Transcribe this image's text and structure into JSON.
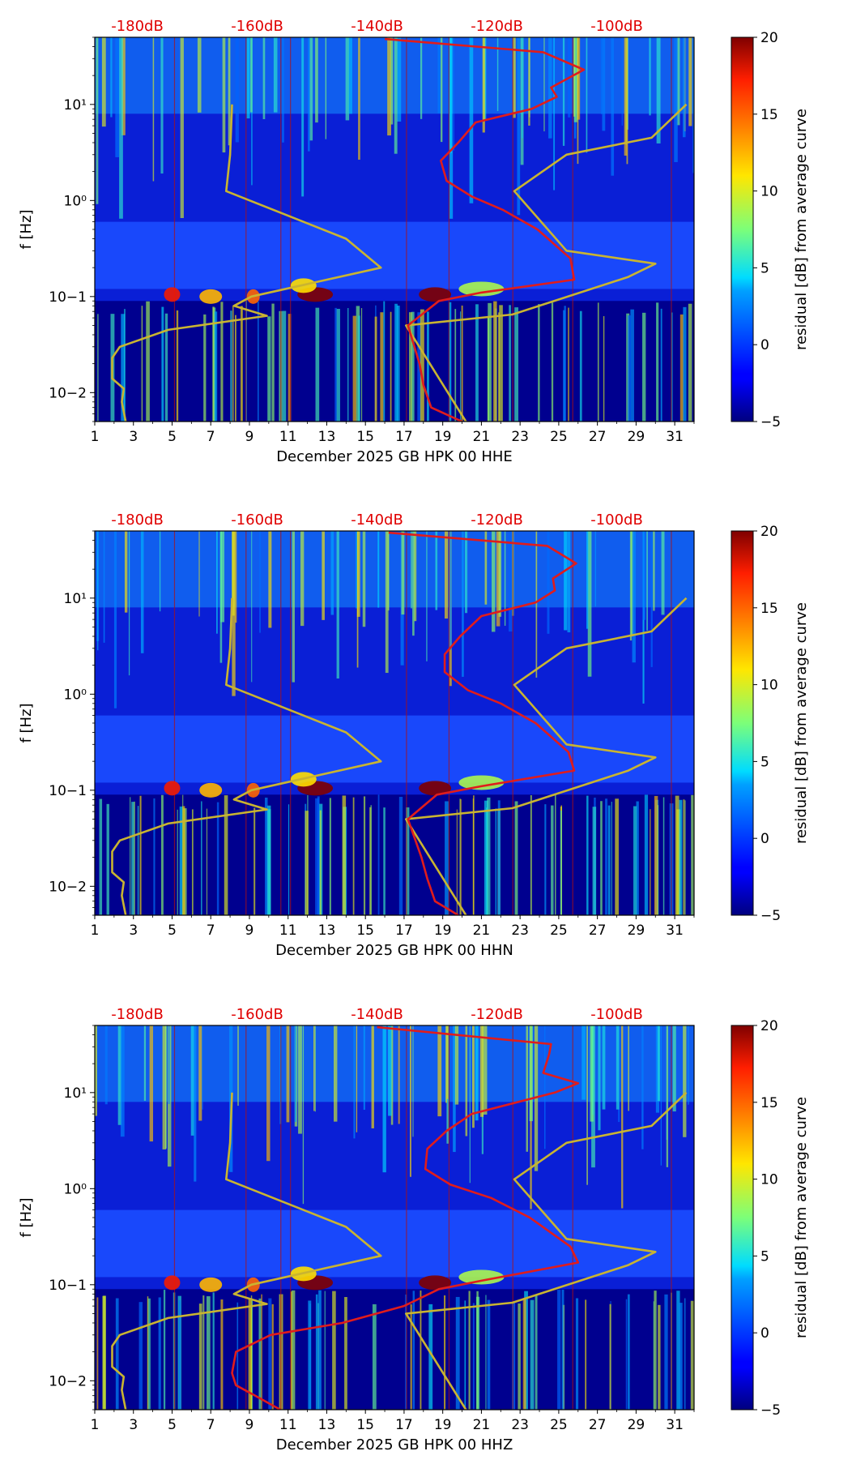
{
  "chart_data": [
    {
      "type": "heatmap",
      "xlabel": "December 2025 GB HPK 00 HHE",
      "ylabel": "f [Hz]",
      "x_ticks": [
        "1",
        "3",
        "5",
        "7",
        "9",
        "11",
        "13",
        "15",
        "17",
        "19",
        "21",
        "23",
        "25",
        "27",
        "29",
        "31"
      ],
      "y_ticks": [
        "10−2",
        "10−1",
        "10⁰",
        "10¹"
      ],
      "ylim_hz": [
        0.005,
        50
      ],
      "xlim_days": [
        1,
        32
      ],
      "db_ticks": [
        "-180dB",
        "-160dB",
        "-140dB",
        "-120dB",
        "-100dB"
      ],
      "colorbar": {
        "label": "residual [dB] from average curve",
        "ticks": [
          "−5",
          "0",
          "5",
          "10",
          "15",
          "20"
        ],
        "range": [
          -5,
          20
        ]
      },
      "series": [
        {
          "name": "noise model (yellow)",
          "color": "#c9b431",
          "points_day_hz": [
            [
              2.6,
              0.005
            ],
            [
              2.4,
              0.008
            ],
            [
              2.5,
              0.011
            ],
            [
              1.9,
              0.014
            ],
            [
              1.9,
              0.023
            ],
            [
              2.3,
              0.03
            ],
            [
              4.8,
              0.045
            ],
            [
              9.9,
              0.063
            ],
            [
              8.2,
              0.08
            ],
            [
              9.1,
              0.1
            ],
            [
              15.8,
              0.2
            ],
            [
              14.0,
              0.4
            ],
            [
              7.8,
              1.25
            ],
            [
              8.0,
              3
            ],
            [
              8.1,
              10
            ]
          ]
        },
        {
          "name": "noise model right (yellow)",
          "color": "#c9b431",
          "points_day_hz": [
            [
              20.2,
              0.005
            ],
            [
              17.1,
              0.05
            ],
            [
              22.6,
              0.065
            ],
            [
              28.6,
              0.16
            ],
            [
              30.0,
              0.22
            ],
            [
              25.4,
              0.3
            ],
            [
              22.7,
              1.25
            ],
            [
              25.4,
              3
            ],
            [
              29.8,
              4.5
            ],
            [
              31.6,
              10
            ]
          ]
        },
        {
          "name": "median PSD (red)",
          "color": "#e01c1c",
          "points_day_hz": [
            [
              20.0,
              0.005
            ],
            [
              18.4,
              0.007
            ],
            [
              18.0,
              0.012
            ],
            [
              17.8,
              0.02
            ],
            [
              17.2,
              0.05
            ],
            [
              18.8,
              0.09
            ],
            [
              21.0,
              0.11
            ],
            [
              25.8,
              0.15
            ],
            [
              25.6,
              0.25
            ],
            [
              23.9,
              0.5
            ],
            [
              22.1,
              0.8
            ],
            [
              20.5,
              1.1
            ],
            [
              19.2,
              1.6
            ],
            [
              18.9,
              2.6
            ],
            [
              19.8,
              4
            ],
            [
              20.7,
              6.5
            ],
            [
              23.6,
              9
            ],
            [
              24.9,
              12
            ],
            [
              24.6,
              15
            ],
            [
              26.3,
              23
            ],
            [
              24.2,
              35
            ],
            [
              16.0,
              48
            ]
          ]
        }
      ]
    },
    {
      "type": "heatmap",
      "xlabel": "December 2025 GB HPK 00 HHN",
      "ylabel": "f [Hz]",
      "x_ticks": [
        "1",
        "3",
        "5",
        "7",
        "9",
        "11",
        "13",
        "15",
        "17",
        "19",
        "21",
        "23",
        "25",
        "27",
        "29",
        "31"
      ],
      "y_ticks": [
        "10−2",
        "10−1",
        "10⁰",
        "10¹"
      ],
      "ylim_hz": [
        0.005,
        50
      ],
      "xlim_days": [
        1,
        32
      ],
      "db_ticks": [
        "-180dB",
        "-160dB",
        "-140dB",
        "-120dB",
        "-100dB"
      ],
      "colorbar": {
        "label": "residual [dB] from average curve",
        "ticks": [
          "−5",
          "0",
          "5",
          "10",
          "15",
          "20"
        ],
        "range": [
          -5,
          20
        ]
      },
      "series": [
        {
          "name": "noise model (yellow)",
          "color": "#c9b431",
          "points_day_hz": [
            [
              2.6,
              0.005
            ],
            [
              2.4,
              0.008
            ],
            [
              2.5,
              0.011
            ],
            [
              1.9,
              0.014
            ],
            [
              1.9,
              0.023
            ],
            [
              2.3,
              0.03
            ],
            [
              4.8,
              0.045
            ],
            [
              9.9,
              0.063
            ],
            [
              8.2,
              0.08
            ],
            [
              9.1,
              0.1
            ],
            [
              15.8,
              0.2
            ],
            [
              14.0,
              0.4
            ],
            [
              7.8,
              1.25
            ],
            [
              8.0,
              3
            ],
            [
              8.1,
              10
            ]
          ]
        },
        {
          "name": "noise model right (yellow)",
          "color": "#c9b431",
          "points_day_hz": [
            [
              20.2,
              0.005
            ],
            [
              17.1,
              0.05
            ],
            [
              22.6,
              0.065
            ],
            [
              28.6,
              0.16
            ],
            [
              30.0,
              0.22
            ],
            [
              25.4,
              0.3
            ],
            [
              22.7,
              1.25
            ],
            [
              25.4,
              3
            ],
            [
              29.8,
              4.5
            ],
            [
              31.6,
              10
            ]
          ]
        },
        {
          "name": "median PSD (red)",
          "color": "#e01c1c",
          "points_day_hz": [
            [
              19.8,
              0.005
            ],
            [
              18.6,
              0.007
            ],
            [
              18.2,
              0.012
            ],
            [
              17.9,
              0.02
            ],
            [
              17.2,
              0.05
            ],
            [
              18.7,
              0.09
            ],
            [
              21.0,
              0.11
            ],
            [
              25.8,
              0.16
            ],
            [
              25.5,
              0.25
            ],
            [
              23.8,
              0.5
            ],
            [
              22.0,
              0.8
            ],
            [
              20.3,
              1.1
            ],
            [
              19.1,
              1.7
            ],
            [
              19.1,
              2.6
            ],
            [
              19.9,
              4
            ],
            [
              21.0,
              6.5
            ],
            [
              23.8,
              9
            ],
            [
              24.8,
              12
            ],
            [
              24.7,
              16
            ],
            [
              25.9,
              23
            ],
            [
              24.4,
              35
            ],
            [
              16.2,
              48
            ]
          ]
        }
      ]
    },
    {
      "type": "heatmap",
      "xlabel": "December 2025 GB HPK 00 HHZ",
      "ylabel": "f [Hz]",
      "x_ticks": [
        "1",
        "3",
        "5",
        "7",
        "9",
        "11",
        "13",
        "15",
        "17",
        "19",
        "21",
        "23",
        "25",
        "27",
        "29",
        "31"
      ],
      "y_ticks": [
        "10−2",
        "10−1",
        "10⁰",
        "10¹"
      ],
      "ylim_hz": [
        0.005,
        50
      ],
      "xlim_days": [
        1,
        32
      ],
      "db_ticks": [
        "-180dB",
        "-160dB",
        "-140dB",
        "-120dB",
        "-100dB"
      ],
      "colorbar": {
        "label": "residual [dB] from average curve",
        "ticks": [
          "−5",
          "0",
          "5",
          "10",
          "15",
          "20"
        ],
        "range": [
          -5,
          20
        ]
      },
      "series": [
        {
          "name": "noise model (yellow)",
          "color": "#c9b431",
          "points_day_hz": [
            [
              2.6,
              0.005
            ],
            [
              2.4,
              0.008
            ],
            [
              2.5,
              0.011
            ],
            [
              1.9,
              0.014
            ],
            [
              1.9,
              0.023
            ],
            [
              2.3,
              0.03
            ],
            [
              4.8,
              0.045
            ],
            [
              9.9,
              0.063
            ],
            [
              8.2,
              0.08
            ],
            [
              9.1,
              0.1
            ],
            [
              15.8,
              0.2
            ],
            [
              14.0,
              0.4
            ],
            [
              7.8,
              1.25
            ],
            [
              8.0,
              3
            ],
            [
              8.1,
              10
            ]
          ]
        },
        {
          "name": "noise model right (yellow)",
          "color": "#c9b431",
          "points_day_hz": [
            [
              20.2,
              0.005
            ],
            [
              17.1,
              0.05
            ],
            [
              22.6,
              0.065
            ],
            [
              28.6,
              0.16
            ],
            [
              30.0,
              0.22
            ],
            [
              25.4,
              0.3
            ],
            [
              22.7,
              1.25
            ],
            [
              25.4,
              3
            ],
            [
              29.8,
              4.5
            ],
            [
              31.6,
              10
            ]
          ]
        },
        {
          "name": "median PSD (red)",
          "color": "#e01c1c",
          "points_day_hz": [
            [
              10.6,
              0.005
            ],
            [
              9.3,
              0.007
            ],
            [
              8.3,
              0.009
            ],
            [
              8.1,
              0.012
            ],
            [
              8.3,
              0.02
            ],
            [
              10.1,
              0.03
            ],
            [
              13.8,
              0.04
            ],
            [
              17.0,
              0.06
            ],
            [
              18.8,
              0.09
            ],
            [
              21.0,
              0.11
            ],
            [
              26.0,
              0.17
            ],
            [
              25.6,
              0.25
            ],
            [
              23.5,
              0.5
            ],
            [
              21.5,
              0.8
            ],
            [
              19.4,
              1.1
            ],
            [
              18.1,
              1.6
            ],
            [
              18.2,
              2.6
            ],
            [
              19.2,
              4
            ],
            [
              20.5,
              6
            ],
            [
              24.8,
              10
            ],
            [
              26.0,
              12.5
            ],
            [
              24.2,
              16
            ],
            [
              24.5,
              25
            ],
            [
              24.6,
              32
            ],
            [
              15.6,
              48
            ]
          ]
        }
      ]
    }
  ]
}
